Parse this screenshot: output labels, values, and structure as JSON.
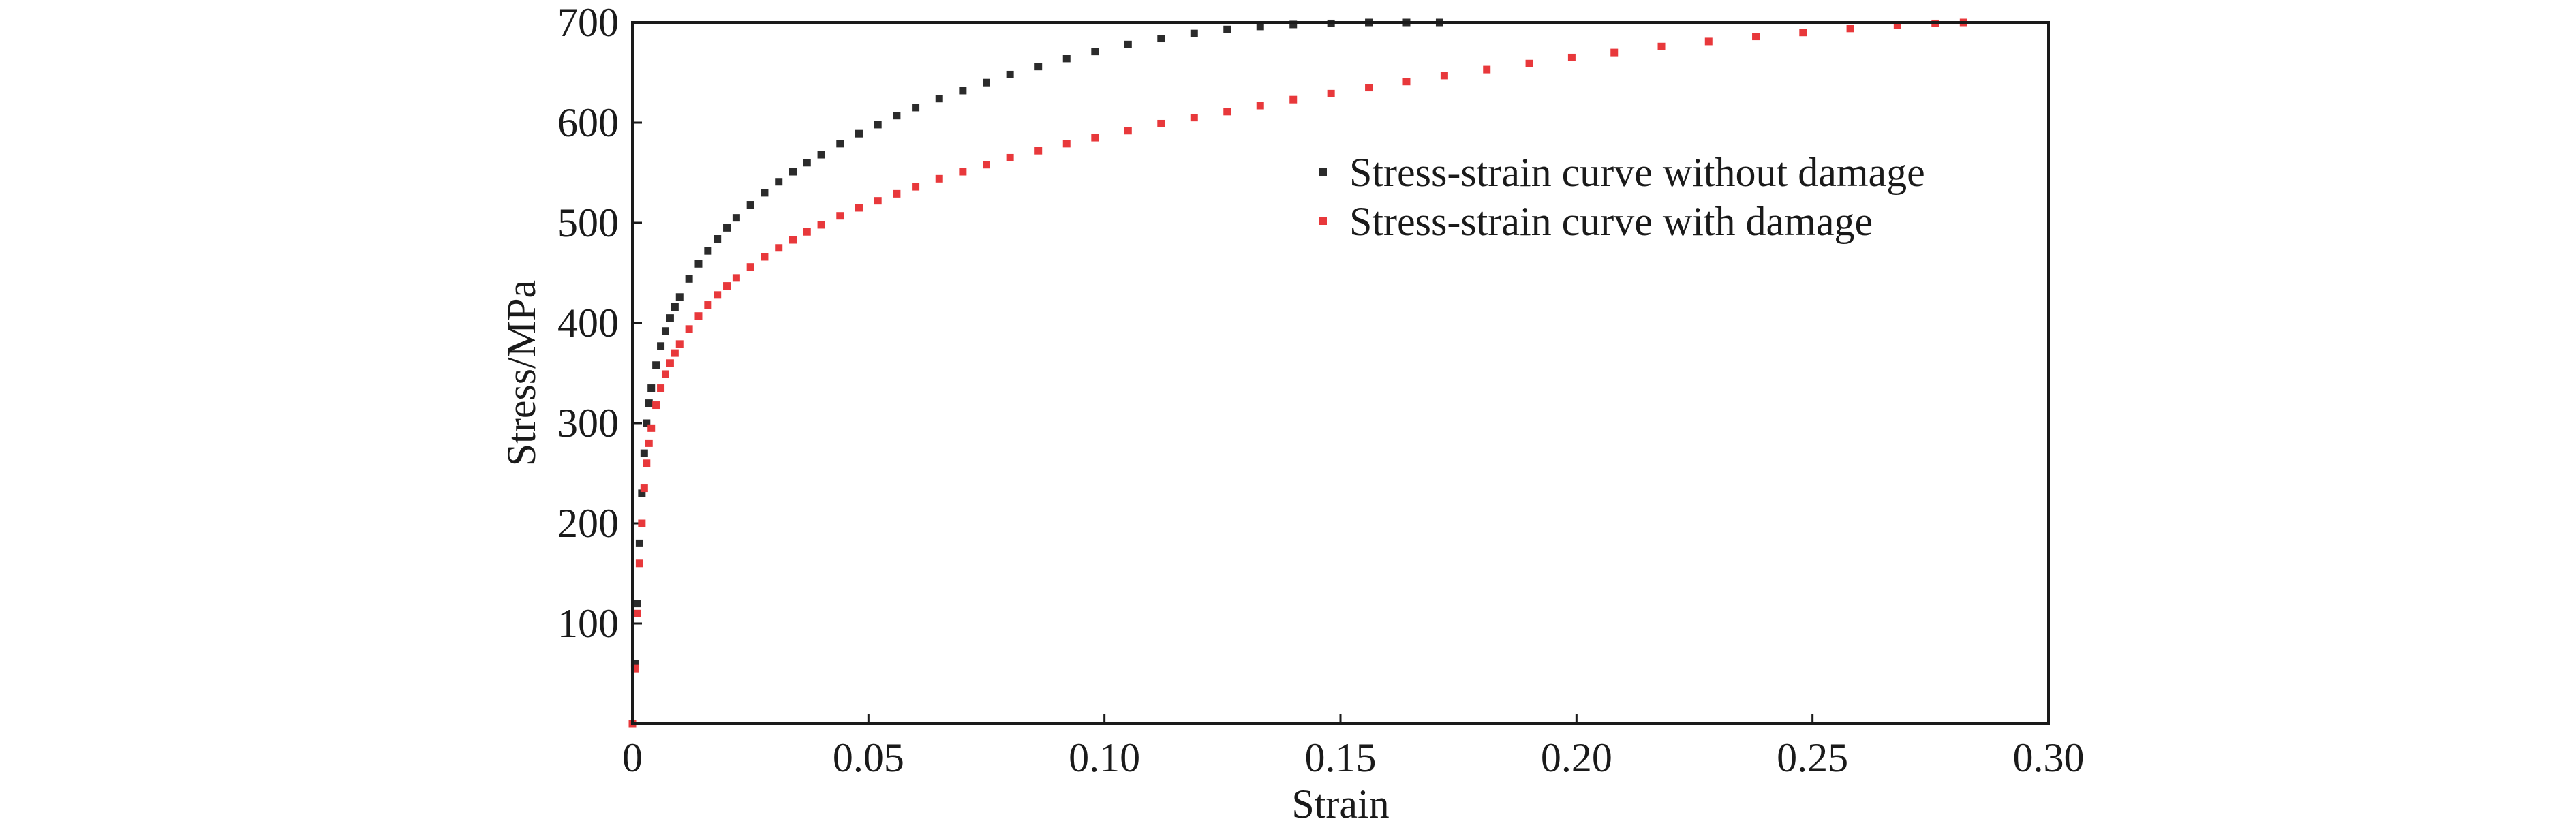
{
  "chart_data": {
    "type": "scatter",
    "title": "",
    "xlabel": "Strain",
    "ylabel": "Stress/MPa",
    "xlim": [
      0,
      0.3
    ],
    "ylim": [
      0,
      700
    ],
    "x_ticks": [
      0,
      0.05,
      0.1,
      0.15,
      0.2,
      0.25,
      0.3
    ],
    "x_tick_labels": [
      "0",
      "0.05",
      "0.10",
      "0.15",
      "0.20",
      "0.25",
      "0.30"
    ],
    "y_ticks": [
      100,
      200,
      300,
      400,
      500,
      600,
      700
    ],
    "y_tick_labels": [
      "100",
      "200",
      "300",
      "400",
      "500",
      "600",
      "700"
    ],
    "grid": false,
    "legend_position": "upper-right",
    "series": [
      {
        "name": "Stress-strain curve without damage",
        "color": "#2b2b2b",
        "x": [
          0,
          0.0005,
          0.001,
          0.0015,
          0.002,
          0.0025,
          0.003,
          0.0035,
          0.004,
          0.005,
          0.006,
          0.007,
          0.008,
          0.009,
          0.01,
          0.012,
          0.014,
          0.016,
          0.018,
          0.02,
          0.022,
          0.025,
          0.028,
          0.031,
          0.034,
          0.037,
          0.04,
          0.044,
          0.048,
          0.052,
          0.056,
          0.06,
          0.065,
          0.07,
          0.075,
          0.08,
          0.086,
          0.092,
          0.098,
          0.105,
          0.112,
          0.119,
          0.126,
          0.133,
          0.14,
          0.148,
          0.156,
          0.164,
          0.171
        ],
        "y": [
          0,
          60,
          120,
          180,
          230,
          270,
          300,
          320,
          335,
          358,
          377,
          392,
          405,
          416,
          426,
          444,
          459,
          472,
          484,
          495,
          505,
          518,
          530,
          541,
          551,
          560,
          568,
          579,
          589,
          598,
          607,
          615,
          624,
          632,
          640,
          648,
          656,
          664,
          671,
          678,
          684,
          689,
          693,
          696,
          698,
          699,
          700,
          700,
          700
        ]
      },
      {
        "name": "Stress-strain curve with damage",
        "color": "#e8383b",
        "x": [
          0,
          0.0005,
          0.001,
          0.0015,
          0.002,
          0.0025,
          0.003,
          0.0035,
          0.004,
          0.005,
          0.006,
          0.007,
          0.008,
          0.009,
          0.01,
          0.012,
          0.014,
          0.016,
          0.018,
          0.02,
          0.022,
          0.025,
          0.028,
          0.031,
          0.034,
          0.037,
          0.04,
          0.044,
          0.048,
          0.052,
          0.056,
          0.06,
          0.065,
          0.07,
          0.075,
          0.08,
          0.086,
          0.092,
          0.098,
          0.105,
          0.112,
          0.119,
          0.126,
          0.133,
          0.14,
          0.148,
          0.156,
          0.164,
          0.172,
          0.181,
          0.19,
          0.199,
          0.208,
          0.218,
          0.228,
          0.238,
          0.248,
          0.258,
          0.268,
          0.276,
          0.282
        ],
        "y": [
          0,
          55,
          110,
          160,
          200,
          235,
          260,
          280,
          295,
          318,
          335,
          349,
          360,
          370,
          379,
          394,
          407,
          418,
          428,
          437,
          445,
          456,
          466,
          475,
          483,
          491,
          498,
          507,
          515,
          522,
          529,
          536,
          544,
          551,
          558,
          565,
          572,
          579,
          585,
          592,
          599,
          605,
          611,
          617,
          623,
          629,
          635,
          641,
          647,
          653,
          659,
          665,
          670,
          676,
          681,
          686,
          690,
          694,
          697,
          699,
          700
        ]
      }
    ]
  }
}
